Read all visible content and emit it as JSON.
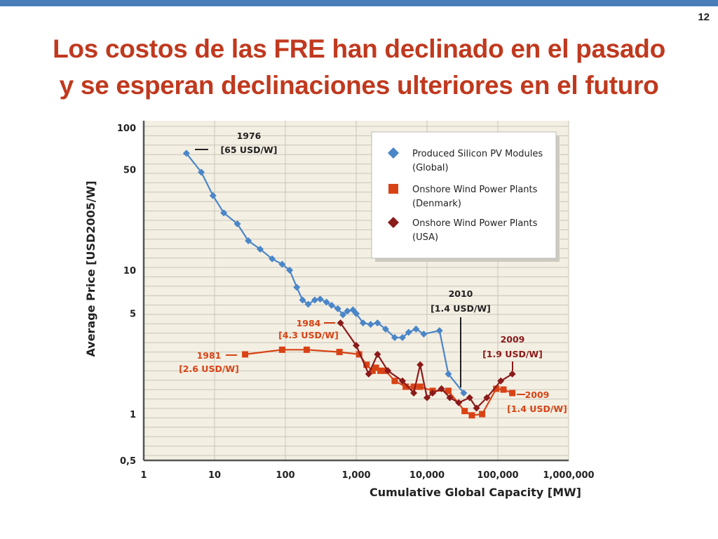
{
  "slide": {
    "page_number": "12",
    "title_line1": "Los costos de las FRE han declinado en el pasado",
    "title_line2": "y se esperan declinaciones ulteriores en el futuro"
  },
  "colors": {
    "title": "#c0391e",
    "pv": "#4a86c8",
    "den": "#d84315",
    "usa": "#8b1a1a",
    "plot_bg": "#f4efe3",
    "grid": "#c9c4b8"
  },
  "chart_data": {
    "type": "line",
    "x_scale": "log",
    "y_scale": "log",
    "xlabel": "Cumulative Global Capacity [MW]",
    "ylabel": "Average Price [USD2005/W]",
    "xlim": [
      1,
      1000000
    ],
    "ylim": [
      0.5,
      100
    ],
    "x_ticks": [
      {
        "v": 1,
        "label": "1"
      },
      {
        "v": 10,
        "label": "10"
      },
      {
        "v": 100,
        "label": "100"
      },
      {
        "v": 1000,
        "label": "1,000"
      },
      {
        "v": 10000,
        "label": "10,000"
      },
      {
        "v": 100000,
        "label": "100,000"
      },
      {
        "v": 1000000,
        "label": "1,000,000"
      }
    ],
    "y_ticks": [
      {
        "v": 0.5,
        "label": "0,5"
      },
      {
        "v": 1,
        "label": "1"
      },
      {
        "v": 5,
        "label": "5"
      },
      {
        "v": 10,
        "label": "10"
      },
      {
        "v": 50,
        "label": "50"
      },
      {
        "v": 100,
        "label": "100"
      }
    ],
    "legend_position": "top-right",
    "series": [
      {
        "name": "Produced Silicon PV Modules (Global)",
        "marker": "diamond",
        "x": [
          4,
          6.5,
          9.5,
          13.5,
          21,
          30,
          44,
          65,
          90,
          115,
          145,
          175,
          210,
          260,
          310,
          380,
          450,
          550,
          650,
          750,
          900,
          1000,
          1250,
          1600,
          2000,
          2600,
          3500,
          4500,
          5500,
          7000,
          9000,
          15000,
          20000,
          33000
        ],
        "y": [
          65,
          48,
          33,
          25,
          21,
          16,
          14,
          12,
          11,
          10,
          7.6,
          6.2,
          5.8,
          6.2,
          6.3,
          6.0,
          5.7,
          5.4,
          4.9,
          5.2,
          5.3,
          5.0,
          4.3,
          4.2,
          4.3,
          3.9,
          3.4,
          3.4,
          3.7,
          3.9,
          3.6,
          3.8,
          1.9,
          1.4
        ]
      },
      {
        "name": "Onshore Wind Power Plants (Denmark)",
        "marker": "square",
        "x": [
          27,
          90,
          200,
          580,
          1100,
          1400,
          1700,
          1900,
          2200,
          2600,
          3500,
          5000,
          6500,
          8000,
          12000,
          20000,
          34000,
          43000,
          60000,
          95000,
          120000,
          160000
        ],
        "y": [
          2.6,
          2.8,
          2.8,
          2.7,
          2.6,
          2.2,
          2.0,
          2.1,
          2.0,
          2.0,
          1.7,
          1.55,
          1.55,
          1.55,
          1.45,
          1.45,
          1.05,
          0.98,
          1.0,
          1.5,
          1.48,
          1.4
        ]
      },
      {
        "name": "Onshore Wind Power Plants (USA)",
        "marker": "diamond",
        "x": [
          600,
          1000,
          1500,
          2000,
          2800,
          4500,
          6500,
          8000,
          10000,
          12000,
          16000,
          21000,
          28000,
          40000,
          50000,
          70000,
          110000,
          160000
        ],
        "y": [
          4.3,
          3.0,
          1.9,
          2.6,
          2.0,
          1.7,
          1.4,
          2.2,
          1.3,
          1.4,
          1.5,
          1.3,
          1.2,
          1.3,
          1.1,
          1.3,
          1.7,
          1.9
        ]
      }
    ],
    "annotations": [
      {
        "label1": "1976",
        "label2": "[65 USD/W]"
      },
      {
        "label1": "1981",
        "label2": "[2.6 USD/W]"
      },
      {
        "label1": "1984",
        "label2": "[4.3 USD/W]"
      },
      {
        "label1": "2010",
        "label2": "[1.4 USD/W]"
      },
      {
        "label1": "2009",
        "label2": "[1.9 USD/W]"
      },
      {
        "label1": "2009",
        "label2": "[1.4 USD/W]"
      }
    ]
  }
}
